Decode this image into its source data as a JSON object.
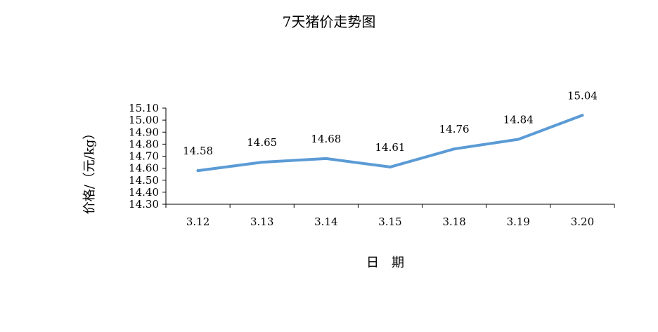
{
  "chart_data": {
    "type": "line",
    "title": "7天猪价走势图",
    "xlabel": "日　期",
    "ylabel": "价格/（元/kg）",
    "categories": [
      "3.12",
      "3.13",
      "3.14",
      "3.15",
      "3.18",
      "3.19",
      "3.20"
    ],
    "series": [
      {
        "values": [
          14.58,
          14.65,
          14.68,
          14.61,
          14.76,
          14.84,
          15.04
        ],
        "color": "#5b9bd5"
      }
    ],
    "data_labels": [
      "14.58",
      "14.65",
      "14.68",
      "14.61",
      "14.76",
      "14.84",
      "15.04"
    ],
    "y_ticks": [
      "14.30",
      "14.40",
      "14.50",
      "14.60",
      "14.70",
      "14.80",
      "14.90",
      "15.00",
      "15.10"
    ],
    "ylim": [
      14.3,
      15.1
    ],
    "grid": false,
    "legend": "none"
  }
}
